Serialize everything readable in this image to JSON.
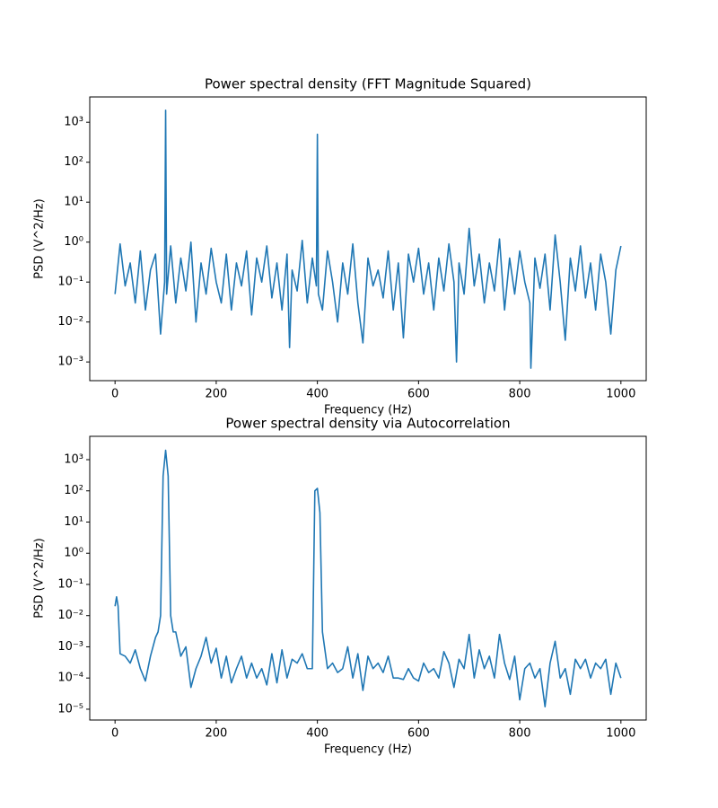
{
  "chart_data": [
    {
      "type": "line",
      "title": "Power spectral density (FFT Magnitude Squared)",
      "xlabel": "Frequency (Hz)",
      "ylabel": "PSD (V^2/Hz)",
      "yscale": "log",
      "color": "#1f77b4",
      "x": [
        0,
        10,
        20,
        30,
        40,
        50,
        60,
        70,
        80,
        90,
        98,
        100,
        102,
        110,
        120,
        130,
        140,
        150,
        160,
        170,
        180,
        190,
        200,
        210,
        220,
        230,
        240,
        250,
        260,
        270,
        280,
        290,
        300,
        310,
        320,
        330,
        340,
        345,
        350,
        360,
        370,
        380,
        390,
        398,
        400,
        402,
        410,
        420,
        430,
        440,
        450,
        460,
        470,
        480,
        490,
        500,
        510,
        520,
        530,
        540,
        550,
        560,
        570,
        580,
        590,
        600,
        610,
        620,
        630,
        640,
        650,
        660,
        670,
        675,
        680,
        690,
        700,
        710,
        720,
        730,
        740,
        750,
        760,
        770,
        780,
        790,
        800,
        810,
        820,
        822,
        830,
        840,
        850,
        860,
        870,
        880,
        890,
        900,
        910,
        920,
        930,
        940,
        950,
        960,
        970,
        980,
        990,
        1000
      ],
      "values": [
        0.05,
        0.9,
        0.08,
        0.3,
        0.03,
        0.6,
        0.02,
        0.2,
        0.5,
        0.005,
        0.1,
        2000,
        0.05,
        0.8,
        0.03,
        0.4,
        0.06,
        1.0,
        0.01,
        0.3,
        0.05,
        0.7,
        0.1,
        0.03,
        0.5,
        0.02,
        0.3,
        0.08,
        0.6,
        0.015,
        0.4,
        0.1,
        0.8,
        0.04,
        0.3,
        0.02,
        0.5,
        0.0023,
        0.2,
        0.06,
        1.1,
        0.03,
        0.4,
        0.08,
        500,
        0.05,
        0.02,
        0.6,
        0.1,
        0.01,
        0.3,
        0.05,
        0.9,
        0.03,
        0.003,
        0.4,
        0.08,
        0.2,
        0.04,
        0.6,
        0.02,
        0.3,
        0.004,
        0.5,
        0.1,
        0.7,
        0.05,
        0.3,
        0.02,
        0.4,
        0.06,
        0.9,
        0.1,
        0.001,
        0.3,
        0.05,
        2.2,
        0.08,
        0.5,
        0.03,
        0.3,
        0.06,
        1.2,
        0.02,
        0.4,
        0.05,
        0.6,
        0.1,
        0.03,
        0.0007,
        0.4,
        0.07,
        0.5,
        0.02,
        1.5,
        0.1,
        0.0035,
        0.4,
        0.06,
        0.8,
        0.04,
        0.3,
        0.02,
        0.5,
        0.1,
        0.005,
        0.2,
        0.8
      ],
      "xlim": [
        -50,
        1050
      ],
      "ylim": [
        0.00034,
        4300
      ],
      "xticks": [
        0,
        200,
        400,
        600,
        800,
        1000
      ],
      "yticks": [
        {
          "value": 0.001,
          "label": "10⁻³"
        },
        {
          "value": 0.01,
          "label": "10⁻²"
        },
        {
          "value": 0.1,
          "label": "10⁻¹"
        },
        {
          "value": 1,
          "label": "10⁰"
        },
        {
          "value": 10,
          "label": "10¹"
        },
        {
          "value": 100,
          "label": "10²"
        },
        {
          "value": 1000,
          "label": "10³"
        }
      ]
    },
    {
      "type": "line",
      "title": "Power spectral density via Autocorrelation",
      "xlabel": "Frequency (Hz)",
      "ylabel": "PSD (V^2/Hz)",
      "yscale": "log",
      "color": "#1f77b4",
      "x": [
        0,
        3,
        6,
        10,
        20,
        30,
        40,
        50,
        60,
        70,
        80,
        85,
        90,
        95,
        100,
        105,
        110,
        115,
        120,
        130,
        140,
        150,
        160,
        170,
        180,
        190,
        200,
        210,
        220,
        230,
        240,
        250,
        260,
        270,
        280,
        290,
        300,
        310,
        320,
        330,
        340,
        350,
        360,
        370,
        380,
        390,
        395,
        400,
        405,
        410,
        420,
        430,
        440,
        450,
        460,
        470,
        480,
        490,
        500,
        510,
        520,
        530,
        540,
        550,
        560,
        570,
        580,
        590,
        600,
        610,
        620,
        630,
        640,
        650,
        660,
        670,
        680,
        690,
        700,
        710,
        720,
        730,
        740,
        750,
        760,
        770,
        780,
        790,
        800,
        810,
        820,
        830,
        840,
        850,
        860,
        870,
        880,
        890,
        900,
        910,
        920,
        930,
        940,
        950,
        960,
        970,
        980,
        990,
        1000
      ],
      "values": [
        0.02,
        0.04,
        0.02,
        0.0006,
        0.0005,
        0.0003,
        0.0008,
        0.0002,
        8e-05,
        0.0005,
        0.002,
        0.003,
        0.01,
        300,
        2000,
        300,
        0.01,
        0.003,
        0.003,
        0.0005,
        0.001,
        5e-05,
        0.0002,
        0.0005,
        0.002,
        0.0003,
        0.0009,
        0.0001,
        0.0005,
        7e-05,
        0.0002,
        0.0005,
        0.0001,
        0.0003,
        0.0001,
        0.0002,
        6e-05,
        0.0006,
        7e-05,
        0.0008,
        0.0001,
        0.0004,
        0.0003,
        0.0006,
        0.0002,
        0.0002,
        100,
        120,
        20,
        0.003,
        0.0002,
        0.0003,
        0.00015,
        0.0002,
        0.001,
        0.0001,
        0.0006,
        4e-05,
        0.0005,
        0.0002,
        0.0003,
        0.00015,
        0.0005,
        0.0001,
        0.0001,
        9e-05,
        0.0002,
        0.0001,
        8e-05,
        0.0003,
        0.00015,
        0.0002,
        0.0001,
        0.0007,
        0.0003,
        5e-05,
        0.0004,
        0.0002,
        0.0025,
        0.0001,
        0.0008,
        0.0002,
        0.0005,
        0.0001,
        0.0025,
        0.0003,
        9e-05,
        0.0005,
        2e-05,
        0.0002,
        0.0003,
        0.0001,
        0.0002,
        1.2e-05,
        0.0003,
        0.0015,
        0.0001,
        0.0002,
        3e-05,
        0.0004,
        0.0002,
        0.0004,
        0.0001,
        0.0003,
        0.0002,
        0.0004,
        3e-05,
        0.0003,
        0.0001
      ],
      "xlim": [
        -50,
        1050
      ],
      "ylim": [
        4.5e-06,
        5600
      ],
      "xticks": [
        0,
        200,
        400,
        600,
        800,
        1000
      ],
      "yticks": [
        {
          "value": 1e-05,
          "label": "10⁻⁵"
        },
        {
          "value": 0.0001,
          "label": "10⁻⁴"
        },
        {
          "value": 0.001,
          "label": "10⁻³"
        },
        {
          "value": 0.01,
          "label": "10⁻²"
        },
        {
          "value": 0.1,
          "label": "10⁻¹"
        },
        {
          "value": 1,
          "label": "10⁰"
        },
        {
          "value": 10,
          "label": "10¹"
        },
        {
          "value": 100,
          "label": "10²"
        },
        {
          "value": 1000,
          "label": "10³"
        }
      ]
    }
  ]
}
